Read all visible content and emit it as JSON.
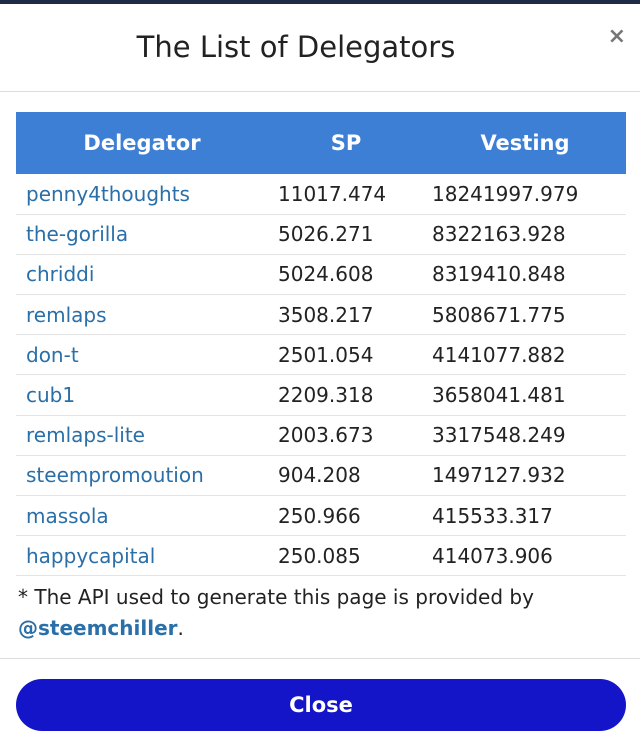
{
  "modal": {
    "title": "The List of Delegators",
    "close_symbol": "×",
    "close_button_label": "Close"
  },
  "table": {
    "headers": [
      "Delegator",
      "SP",
      "Vesting"
    ],
    "rows": [
      {
        "delegator": "penny4thoughts",
        "sp": "11017.474",
        "vesting": "18241997.979"
      },
      {
        "delegator": "the-gorilla",
        "sp": "5026.271",
        "vesting": "8322163.928"
      },
      {
        "delegator": "chriddi",
        "sp": "5024.608",
        "vesting": "8319410.848"
      },
      {
        "delegator": "remlaps",
        "sp": "3508.217",
        "vesting": "5808671.775"
      },
      {
        "delegator": "don-t",
        "sp": "2501.054",
        "vesting": "4141077.882"
      },
      {
        "delegator": "cub1",
        "sp": "2209.318",
        "vesting": "3658041.481"
      },
      {
        "delegator": "remlaps-lite",
        "sp": "2003.673",
        "vesting": "3317548.249"
      },
      {
        "delegator": "steempromoution",
        "sp": "904.208",
        "vesting": "1497127.932"
      },
      {
        "delegator": "massola",
        "sp": "250.966",
        "vesting": "415533.317"
      },
      {
        "delegator": "happycapital",
        "sp": "250.085",
        "vesting": "414073.906"
      }
    ]
  },
  "footnote": {
    "text": "* The API used to generate this page is provided by",
    "link": "@steemchiller",
    "suffix": "."
  },
  "colors": {
    "header_bg": "#3d7fd4",
    "link": "#2a6fa8",
    "close_button_bg": "#1414c8"
  }
}
